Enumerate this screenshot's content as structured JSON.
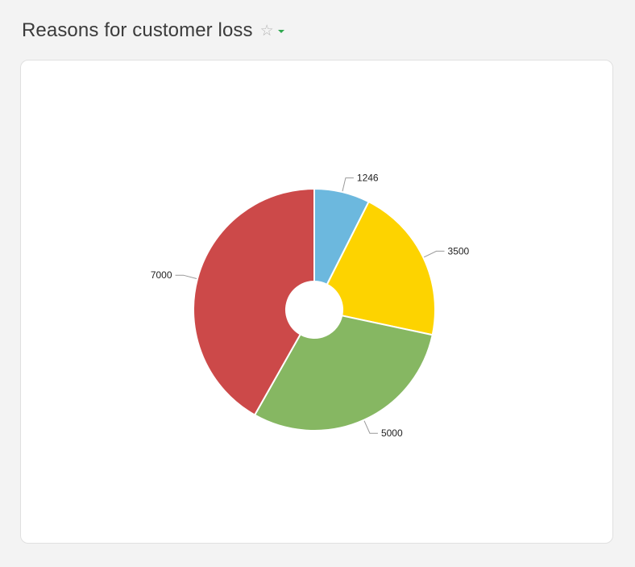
{
  "header": {
    "title": "Reasons for customer loss",
    "star_icon": "star-outline-icon",
    "dropdown_icon": "caret-down-icon",
    "accent_color": "#2fa84f"
  },
  "chart_data": {
    "type": "pie",
    "donut": true,
    "title": "",
    "start_angle_deg": 0,
    "direction": "clockwise",
    "values": [
      1246,
      3500,
      5000,
      7000
    ],
    "labels": [
      "1246",
      "3500",
      "5000",
      "7000"
    ],
    "colors": [
      "#6cb8de",
      "#fdd300",
      "#86b762",
      "#cc4949"
    ],
    "legend": "none"
  }
}
